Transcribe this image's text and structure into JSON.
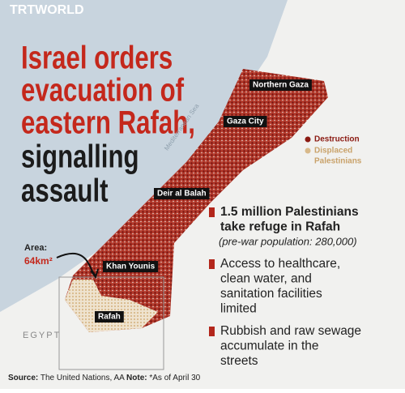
{
  "logo": "TRTWORLD",
  "title_lines": [
    "Israel orders",
    "evacuation of",
    "eastern Rafah,",
    "signalling",
    "assault"
  ],
  "map": {
    "labels": [
      "Northern Gaza",
      "Gaza City",
      "Deir al Balah",
      "Khan Younis",
      "Rafah"
    ],
    "sea": "Mediterranean Sea",
    "country": "EGYPT",
    "area_label": "Area:",
    "area_value": "64km²"
  },
  "legend": {
    "destruction": "Destruction",
    "displaced_lines": [
      "Displaced",
      "Palestinians"
    ]
  },
  "facts": [
    {
      "lines": [
        "1.5 million Palestinians",
        "take refuge in Rafah"
      ],
      "note": "(pre-war population: 280,000)"
    },
    {
      "lines": [
        "Access to healthcare,",
        "clean water, and",
        "sanitation facilities",
        "limited"
      ]
    },
    {
      "lines": [
        "Rubbish and raw sewage",
        "accumulate in the",
        "streets"
      ]
    }
  ],
  "footer": {
    "source_label": "Source:",
    "source": "The United Nations, AA",
    "note_label": "Note:",
    "note": "*As of April 30"
  }
}
